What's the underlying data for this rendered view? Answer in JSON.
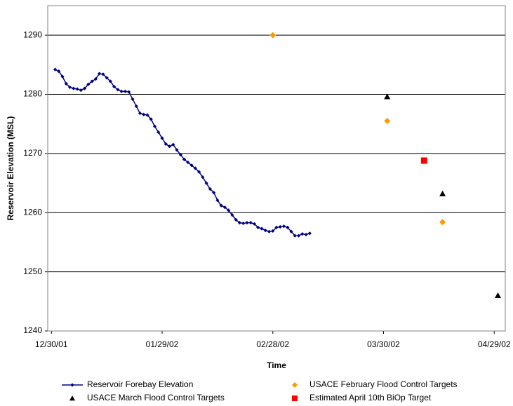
{
  "chart_data": {
    "type": "line",
    "xlabel": "Time",
    "ylabel": "Reservoir Elevation (MSL)",
    "xlim": [
      "2001-12-29",
      "2002-05-02"
    ],
    "xticks": [
      {
        "value": "2001-12-30",
        "label": "12/30/01"
      },
      {
        "value": "2002-01-29",
        "label": "01/29/02"
      },
      {
        "value": "2002-02-28",
        "label": "02/28/02"
      },
      {
        "value": "2002-03-30",
        "label": "03/30/02"
      },
      {
        "value": "2002-04-29",
        "label": "04/29/02"
      }
    ],
    "ylim": [
      1240,
      1295
    ],
    "yticks": [
      1240,
      1250,
      1260,
      1270,
      1280,
      1290
    ],
    "grid": true,
    "series": [
      {
        "name": "Reservoir Forebay Elevation",
        "color": "#000080",
        "marker": "diamond",
        "line": true,
        "x": [
          "2001-12-31",
          "2002-01-01",
          "2002-01-02",
          "2002-01-03",
          "2002-01-04",
          "2002-01-05",
          "2002-01-06",
          "2002-01-07",
          "2002-01-08",
          "2002-01-09",
          "2002-01-10",
          "2002-01-11",
          "2002-01-12",
          "2002-01-13",
          "2002-01-14",
          "2002-01-15",
          "2002-01-16",
          "2002-01-17",
          "2002-01-18",
          "2002-01-19",
          "2002-01-20",
          "2002-01-21",
          "2002-01-22",
          "2002-01-23",
          "2002-01-24",
          "2002-01-25",
          "2002-01-26",
          "2002-01-27",
          "2002-01-28",
          "2002-01-29",
          "2002-01-30",
          "2002-01-31",
          "2002-02-01",
          "2002-02-02",
          "2002-02-03",
          "2002-02-04",
          "2002-02-05",
          "2002-02-06",
          "2002-02-07",
          "2002-02-08",
          "2002-02-09",
          "2002-02-10",
          "2002-02-11",
          "2002-02-12",
          "2002-02-13",
          "2002-02-14",
          "2002-02-15",
          "2002-02-16",
          "2002-02-17",
          "2002-02-18",
          "2002-02-19",
          "2002-02-20",
          "2002-02-21",
          "2002-02-22",
          "2002-02-23",
          "2002-02-24",
          "2002-02-25",
          "2002-02-26",
          "2002-02-27",
          "2002-02-28",
          "2002-03-01",
          "2002-03-02",
          "2002-03-03",
          "2002-03-04",
          "2002-03-05",
          "2002-03-06",
          "2002-03-07",
          "2002-03-08",
          "2002-03-09",
          "2002-03-10"
        ],
        "values": [
          1284.2,
          1283.9,
          1283.0,
          1281.8,
          1281.2,
          1281.0,
          1280.9,
          1280.7,
          1281.0,
          1281.7,
          1282.2,
          1282.6,
          1283.5,
          1283.4,
          1282.8,
          1282.2,
          1281.3,
          1280.8,
          1280.5,
          1280.5,
          1280.4,
          1279.2,
          1278.0,
          1276.8,
          1276.6,
          1276.5,
          1275.8,
          1274.6,
          1273.6,
          1272.6,
          1271.6,
          1271.2,
          1271.5,
          1270.6,
          1269.8,
          1269.0,
          1268.5,
          1268.0,
          1267.5,
          1266.9,
          1266.0,
          1265.0,
          1264.0,
          1263.4,
          1262.1,
          1261.2,
          1260.9,
          1260.4,
          1259.6,
          1258.8,
          1258.3,
          1258.2,
          1258.3,
          1258.3,
          1258.1,
          1257.5,
          1257.3,
          1257.0,
          1256.8,
          1256.9,
          1257.5,
          1257.6,
          1257.7,
          1257.5,
          1256.8,
          1256.1,
          1256.1,
          1256.4,
          1256.3,
          1256.5
        ]
      },
      {
        "name": "USACE February Flood Control Targets",
        "color": "#ff9900",
        "marker": "diamond",
        "line": false,
        "x": [
          "2002-02-28",
          "2002-03-31",
          "2002-04-15"
        ],
        "values": [
          1290,
          1275.5,
          1258.4
        ]
      },
      {
        "name": "USACE March Flood Control Targets",
        "color": "#000000",
        "marker": "triangle",
        "line": false,
        "x": [
          "2002-03-31",
          "2002-04-15",
          "2002-04-30"
        ],
        "values": [
          1279.6,
          1263.2,
          1246
        ]
      },
      {
        "name": "Estimated April 10th BiOp Target",
        "color": "#ff0000",
        "marker": "square",
        "line": false,
        "x": [
          "2002-04-10"
        ],
        "values": [
          1268.8
        ]
      }
    ]
  }
}
